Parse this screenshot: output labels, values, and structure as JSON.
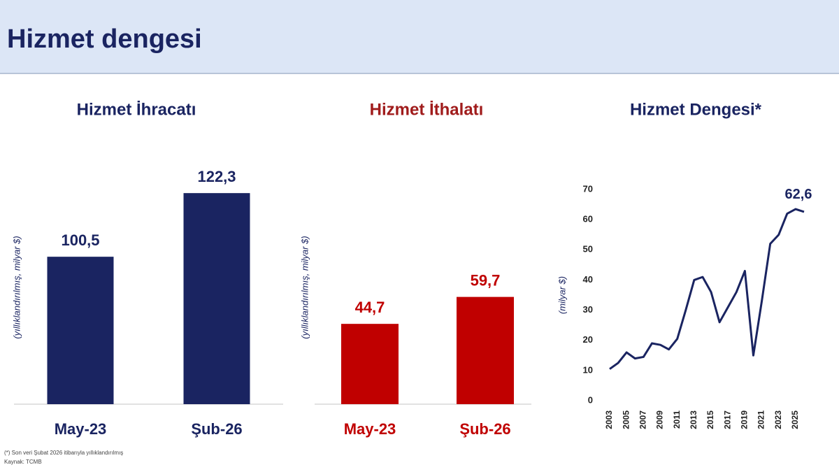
{
  "title": "Hizmet dengesi",
  "chart_data": [
    {
      "type": "bar",
      "title": "Hizmet İhracatı",
      "y_label": "(yıllıklandırılmış, milyar $)",
      "categories": [
        "May-23",
        "Şub-26"
      ],
      "values": [
        100.5,
        122.3
      ],
      "value_labels": [
        "100,5",
        "122,3"
      ],
      "color": "#1a2461",
      "ylim": [
        50,
        130
      ]
    },
    {
      "type": "bar",
      "title": "Hizmet İthalatı",
      "y_label": "(yıllıklandırılmış, milyar $)",
      "categories": [
        "May-23",
        "Şub-26"
      ],
      "values": [
        44.7,
        59.7
      ],
      "value_labels": [
        "44,7",
        "59,7"
      ],
      "color": "#c00000",
      "ylim": [
        0,
        130
      ]
    },
    {
      "type": "line",
      "title": "Hizmet Dengesi*",
      "y_label": "(milyar $)",
      "categories": [
        "2003",
        null,
        "2005",
        null,
        "2007",
        null,
        "2009",
        null,
        "2011",
        null,
        "2013",
        null,
        "2015",
        null,
        "2017",
        null,
        "2019",
        null,
        "2021",
        null,
        "2023",
        null,
        "2025",
        null
      ],
      "values": [
        10.5,
        12.5,
        16,
        14,
        14.5,
        19,
        18.5,
        17,
        20.5,
        30,
        40,
        41,
        36,
        26,
        31,
        36,
        43,
        15,
        33,
        52,
        55,
        62,
        63.5,
        62.6
      ],
      "value_labels": [
        null,
        null,
        null,
        null,
        null,
        null,
        null,
        null,
        null,
        null,
        null,
        null,
        null,
        null,
        null,
        null,
        null,
        null,
        null,
        null,
        null,
        null,
        null,
        "62,6"
      ],
      "color": "#1a2461",
      "ylim": [
        0,
        70
      ],
      "yticks": [
        0,
        10,
        20,
        30,
        40,
        50,
        60,
        70
      ]
    }
  ],
  "footnotes": [
    "(*) Son veri Şubat 2026 itibarıyla yıllıklandırılmış",
    "Kaynak: TCMB"
  ]
}
